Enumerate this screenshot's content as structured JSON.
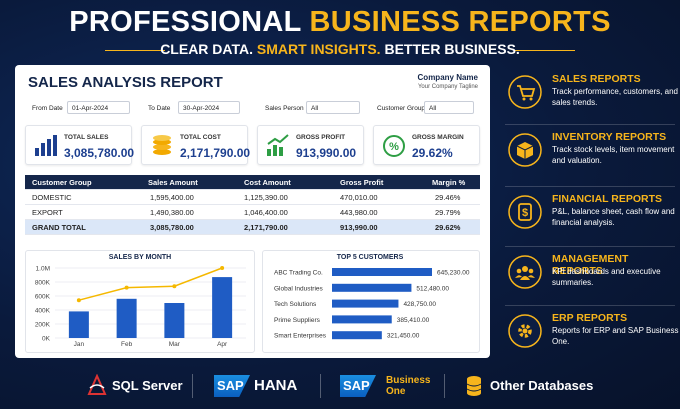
{
  "header": {
    "title": [
      "PROFESSIONAL",
      "BUSINESS REPORTS"
    ],
    "subtitle": [
      "CLEAR DATA.",
      "SMART INSIGHTS.",
      "BETTER BUSINESS."
    ]
  },
  "report": {
    "title": "SALES ANALYSIS REPORT",
    "company": "Company Name",
    "tagline": "Your Company Tagline",
    "filters": [
      {
        "label": "From Date",
        "value": "01-Apr-2024"
      },
      {
        "label": "To Date",
        "value": "30-Apr-2024"
      },
      {
        "label": "Sales Person",
        "value": "All"
      },
      {
        "label": "Customer Group",
        "value": "All"
      }
    ],
    "kpis": [
      {
        "label": "TOTAL SALES",
        "value": "3,085,780.00"
      },
      {
        "label": "TOTAL COST",
        "value": "2,171,790.00"
      },
      {
        "label": "GROSS PROFIT",
        "value": "913,990.00"
      },
      {
        "label": "GROSS MARGIN",
        "value": "29.62%"
      }
    ],
    "table": {
      "columns": [
        "Customer Group",
        "Sales Amount",
        "Cost Amount",
        "Gross Profit",
        "Margin %"
      ],
      "rows": [
        [
          "DOMESTIC",
          "1,595,400.00",
          "1,125,390.00",
          "470,010.00",
          "29.46%"
        ],
        [
          "EXPORT",
          "1,490,380.00",
          "1,046,400.00",
          "443,980.00",
          "29.79%"
        ],
        [
          "GRAND TOTAL",
          "3,085,780.00",
          "2,171,790.00",
          "913,990.00",
          "29.62%"
        ]
      ]
    }
  },
  "chart_data": [
    {
      "type": "bar",
      "title": "SALES BY MONTH",
      "categories": [
        "Jan",
        "Feb",
        "Mar",
        "Apr"
      ],
      "series": [
        {
          "type": "bar",
          "color": "#1f5cc4",
          "values": [
            380000,
            560000,
            500000,
            870000
          ]
        },
        {
          "type": "line",
          "color": "#f5b800",
          "values": [
            540000,
            720000,
            740000,
            1000000
          ]
        }
      ],
      "ylim": [
        0,
        1000000
      ],
      "yticks": [
        {
          "value": 0,
          "label": "0K"
        },
        {
          "value": 200000,
          "label": "200K"
        },
        {
          "value": 400000,
          "label": "400K"
        },
        {
          "value": 600000,
          "label": "600K"
        },
        {
          "value": 800000,
          "label": "800K"
        },
        {
          "value": 1000000,
          "label": "1.0M"
        }
      ],
      "grid": true
    },
    {
      "type": "hbar",
      "title": "TOP 5 CUSTOMERS",
      "categories": [
        "ABC Trading Co.",
        "Global Industries",
        "Tech Solutions",
        "Prime Suppliers",
        "Smart Enterprises"
      ],
      "values": [
        645230,
        512480,
        428750,
        385410,
        321450
      ],
      "value_labels": [
        "645,230.00",
        "512,480.00",
        "428,750.00",
        "385,410.00",
        "321,450.00"
      ],
      "color": "#1f5cc4"
    }
  ],
  "services": [
    {
      "title": "SALES REPORTS",
      "text": "Track performance, customers, and sales trends."
    },
    {
      "title": "INVENTORY REPORTS",
      "text": "Track stock levels, item movement and valuation."
    },
    {
      "title": "FINANCIAL REPORTS",
      "text": "P&L, balance sheet, cash flow and financial analysis."
    },
    {
      "title": "MANAGEMENT REPORTS",
      "text": "KPI dashboards and executive summaries."
    },
    {
      "title": "ERP REPORTS",
      "text": "Reports for ERP and SAP Business One."
    }
  ],
  "footer": {
    "sql": "SQL Server",
    "sap1": "SAP",
    "hana": "HANA",
    "sap2": "SAP",
    "b1": "Business One",
    "other": "Other Databases"
  }
}
